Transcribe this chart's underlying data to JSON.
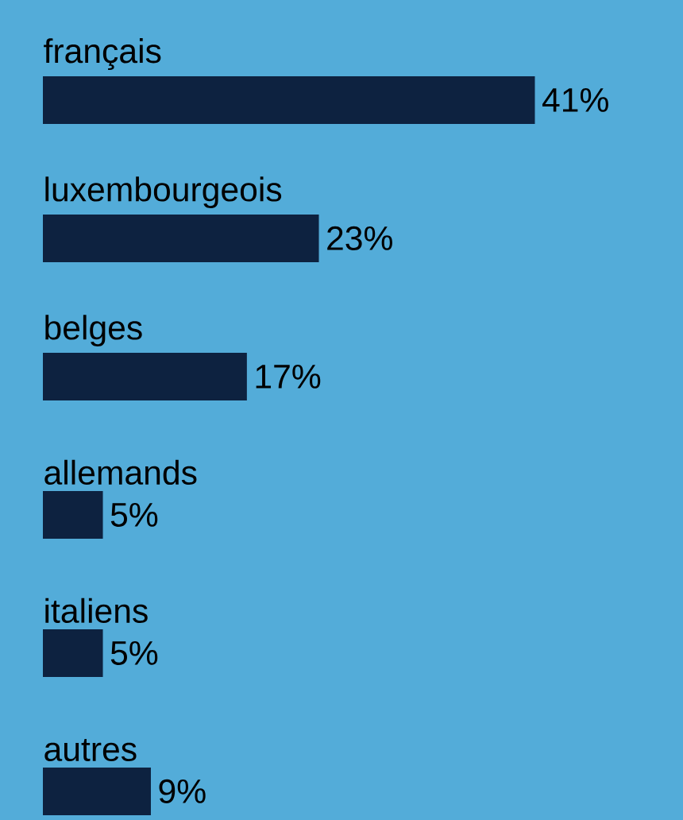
{
  "chart_data": {
    "type": "bar",
    "orientation": "horizontal",
    "categories": [
      "français",
      "luxembourgeois",
      "belges",
      "allemands",
      "italiens",
      "autres"
    ],
    "values": [
      41,
      23,
      17,
      5,
      5,
      9
    ],
    "value_labels": [
      "41%",
      "23%",
      "17%",
      "5%",
      "5%",
      "9%"
    ],
    "color": "#0d2240"
  }
}
